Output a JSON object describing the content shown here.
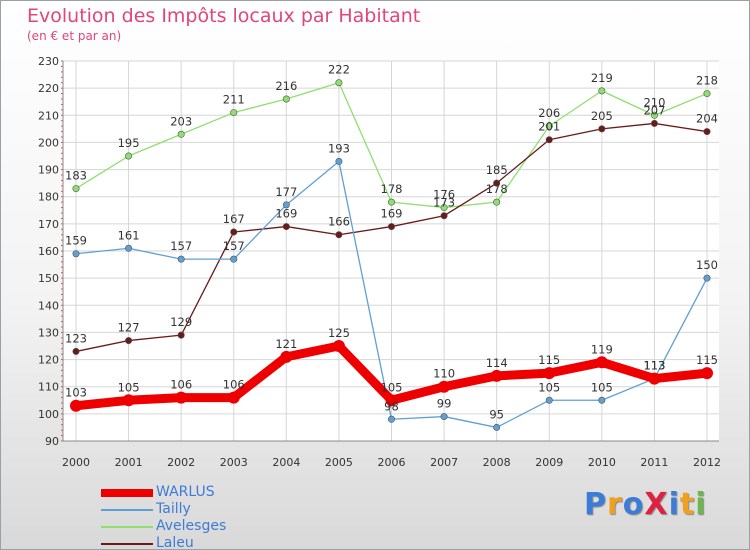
{
  "title": "Evolution des Impôts locaux par Habitant",
  "subtitle": "(en € et par an)",
  "logo": "ProXiti",
  "chart_data": {
    "type": "line",
    "title": "Evolution des Impôts locaux par Habitant",
    "subtitle": "(en € et par an)",
    "xlabel": "",
    "ylabel": "",
    "x": [
      "2000",
      "2001",
      "2002",
      "2003",
      "2004",
      "2005",
      "2006",
      "2007",
      "2008",
      "2009",
      "2010",
      "2011",
      "2012"
    ],
    "ylim": [
      90,
      230
    ],
    "yticks": [
      90,
      100,
      110,
      120,
      130,
      140,
      150,
      160,
      170,
      180,
      190,
      200,
      210,
      220,
      230
    ],
    "grid": true,
    "legend_position": "bottom-left",
    "series": [
      {
        "name": "WARLUS",
        "color": "#ee0000",
        "values": [
          103,
          105,
          106,
          106,
          121,
          125,
          105,
          110,
          114,
          115,
          119,
          113,
          115
        ]
      },
      {
        "name": "Tailly",
        "color": "#5fa0d4",
        "values": [
          159,
          161,
          157,
          157,
          177,
          193,
          98,
          99,
          95,
          105,
          105,
          113,
          150
        ]
      },
      {
        "name": "Avelesges",
        "color": "#8ee06e",
        "values": [
          183,
          195,
          203,
          211,
          216,
          222,
          178,
          176,
          178,
          206,
          219,
          210,
          218
        ]
      },
      {
        "name": "Laleu",
        "color": "#6a1a1a",
        "values": [
          123,
          127,
          129,
          167,
          169,
          166,
          169,
          173,
          185,
          201,
          205,
          207,
          204
        ]
      }
    ],
    "data_labels": [
      [
        103,
        105,
        106,
        106,
        121,
        125,
        105,
        110,
        114,
        115,
        119,
        113,
        115
      ],
      [
        159,
        161,
        157,
        157,
        177,
        193,
        98,
        99,
        95,
        105,
        105,
        113,
        150
      ],
      [
        183,
        195,
        203,
        211,
        216,
        222,
        178,
        176,
        178,
        206,
        219,
        210,
        218
      ],
      [
        123,
        127,
        129,
        167,
        169,
        166,
        169,
        173,
        185,
        201,
        205,
        207,
        204
      ]
    ]
  }
}
